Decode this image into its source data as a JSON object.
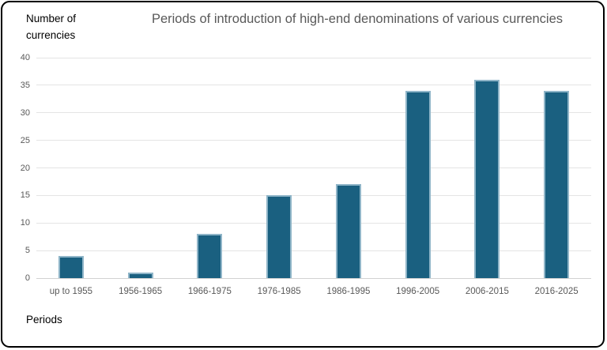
{
  "chart_data": {
    "type": "bar",
    "title": "Periods of introduction of high-end denominations of various currencies",
    "y_axis_title_lines": [
      "Number of",
      "currencies"
    ],
    "x_axis_title": "Periods",
    "categories": [
      "up to 1955",
      "1956-1965",
      "1966-1975",
      "1976-1985",
      "1986-1995",
      "1996-2005",
      "2006-2015",
      "2016-2025"
    ],
    "values": [
      4,
      1,
      8,
      15,
      17,
      34,
      36,
      34
    ],
    "ylim": [
      0,
      40
    ],
    "yticks": [
      0,
      5,
      10,
      15,
      20,
      25,
      30,
      35,
      40
    ],
    "grid": "horizontal",
    "legend": "none",
    "colors": {
      "bar_fill": "#1a6080",
      "bar_border": "#8fb5c8",
      "gridline": "#e4e4e4",
      "axis_line": "#d2d2d2",
      "title_text": "#595959",
      "tick_text": "#595959",
      "axis_title_text": "#000000",
      "frame_border": "#000000",
      "background": "#ffffff"
    }
  }
}
